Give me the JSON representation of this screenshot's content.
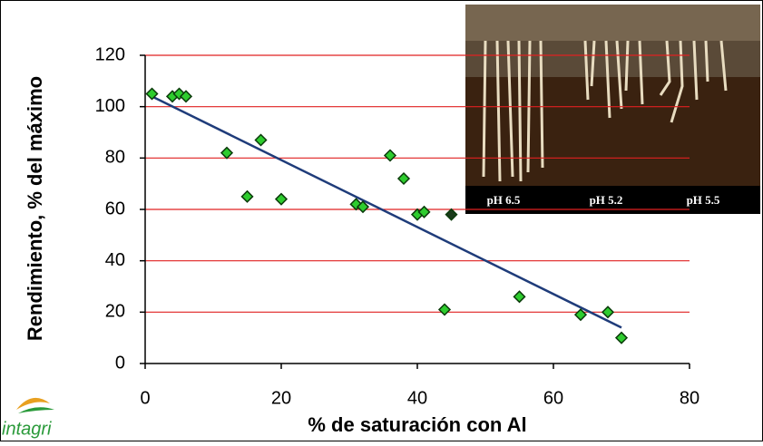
{
  "chart_data": {
    "type": "scatter",
    "x_label": "% de saturación con Al",
    "y_label": "Rendimiento, % del máximo",
    "x": [
      1,
      4,
      5,
      6,
      12,
      15,
      17,
      20,
      31,
      32,
      36,
      38,
      40,
      41,
      45,
      44,
      55,
      64,
      68,
      70
    ],
    "values": [
      105,
      104,
      105,
      104,
      82,
      65,
      87,
      64,
      62,
      61,
      81,
      72,
      58,
      59,
      58,
      21,
      26,
      19,
      20,
      10
    ],
    "colors": [
      "#2ecc2e",
      "#2ecc2e",
      "#2ecc2e",
      "#2ecc2e",
      "#2ecc2e",
      "#2ecc2e",
      "#2ecc2e",
      "#2ecc2e",
      "#2ecc2e",
      "#2ecc2e",
      "#2ecc2e",
      "#2ecc2e",
      "#2ecc2e",
      "#2ecc2e",
      "#1a3a1a",
      "#2ecc2e",
      "#2ecc2e",
      "#2ecc2e",
      "#2ecc2e",
      "#2ecc2e"
    ],
    "trendline": {
      "x": [
        1,
        70
      ],
      "values": [
        104,
        14
      ],
      "color": "#1f3c7a"
    },
    "xlim": [
      0,
      80
    ],
    "xticks": [
      0,
      20,
      40,
      60,
      80
    ],
    "ylim": [
      0,
      120
    ],
    "yticks": [
      0,
      20,
      40,
      60,
      80,
      100,
      120
    ],
    "grid": true,
    "grid_color": "#e02020"
  },
  "inset": {
    "labels": [
      "pH 6.5",
      "pH 5.2",
      "pH 5.5"
    ]
  },
  "logo": "intagri"
}
